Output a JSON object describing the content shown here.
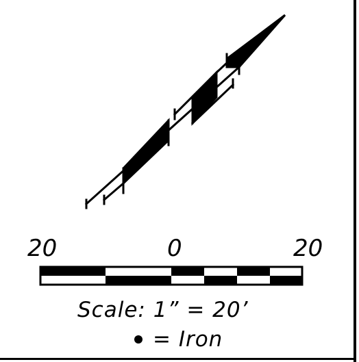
{
  "scale_bar": {
    "labels": [
      "20",
      "0",
      "20"
    ],
    "scale_text": "Scale: 1” = 20’"
  },
  "legend": {
    "symbol": "iron-dot",
    "text": "= Iron"
  },
  "colors": {
    "ink": "#000000",
    "paper": "#ffffff"
  }
}
